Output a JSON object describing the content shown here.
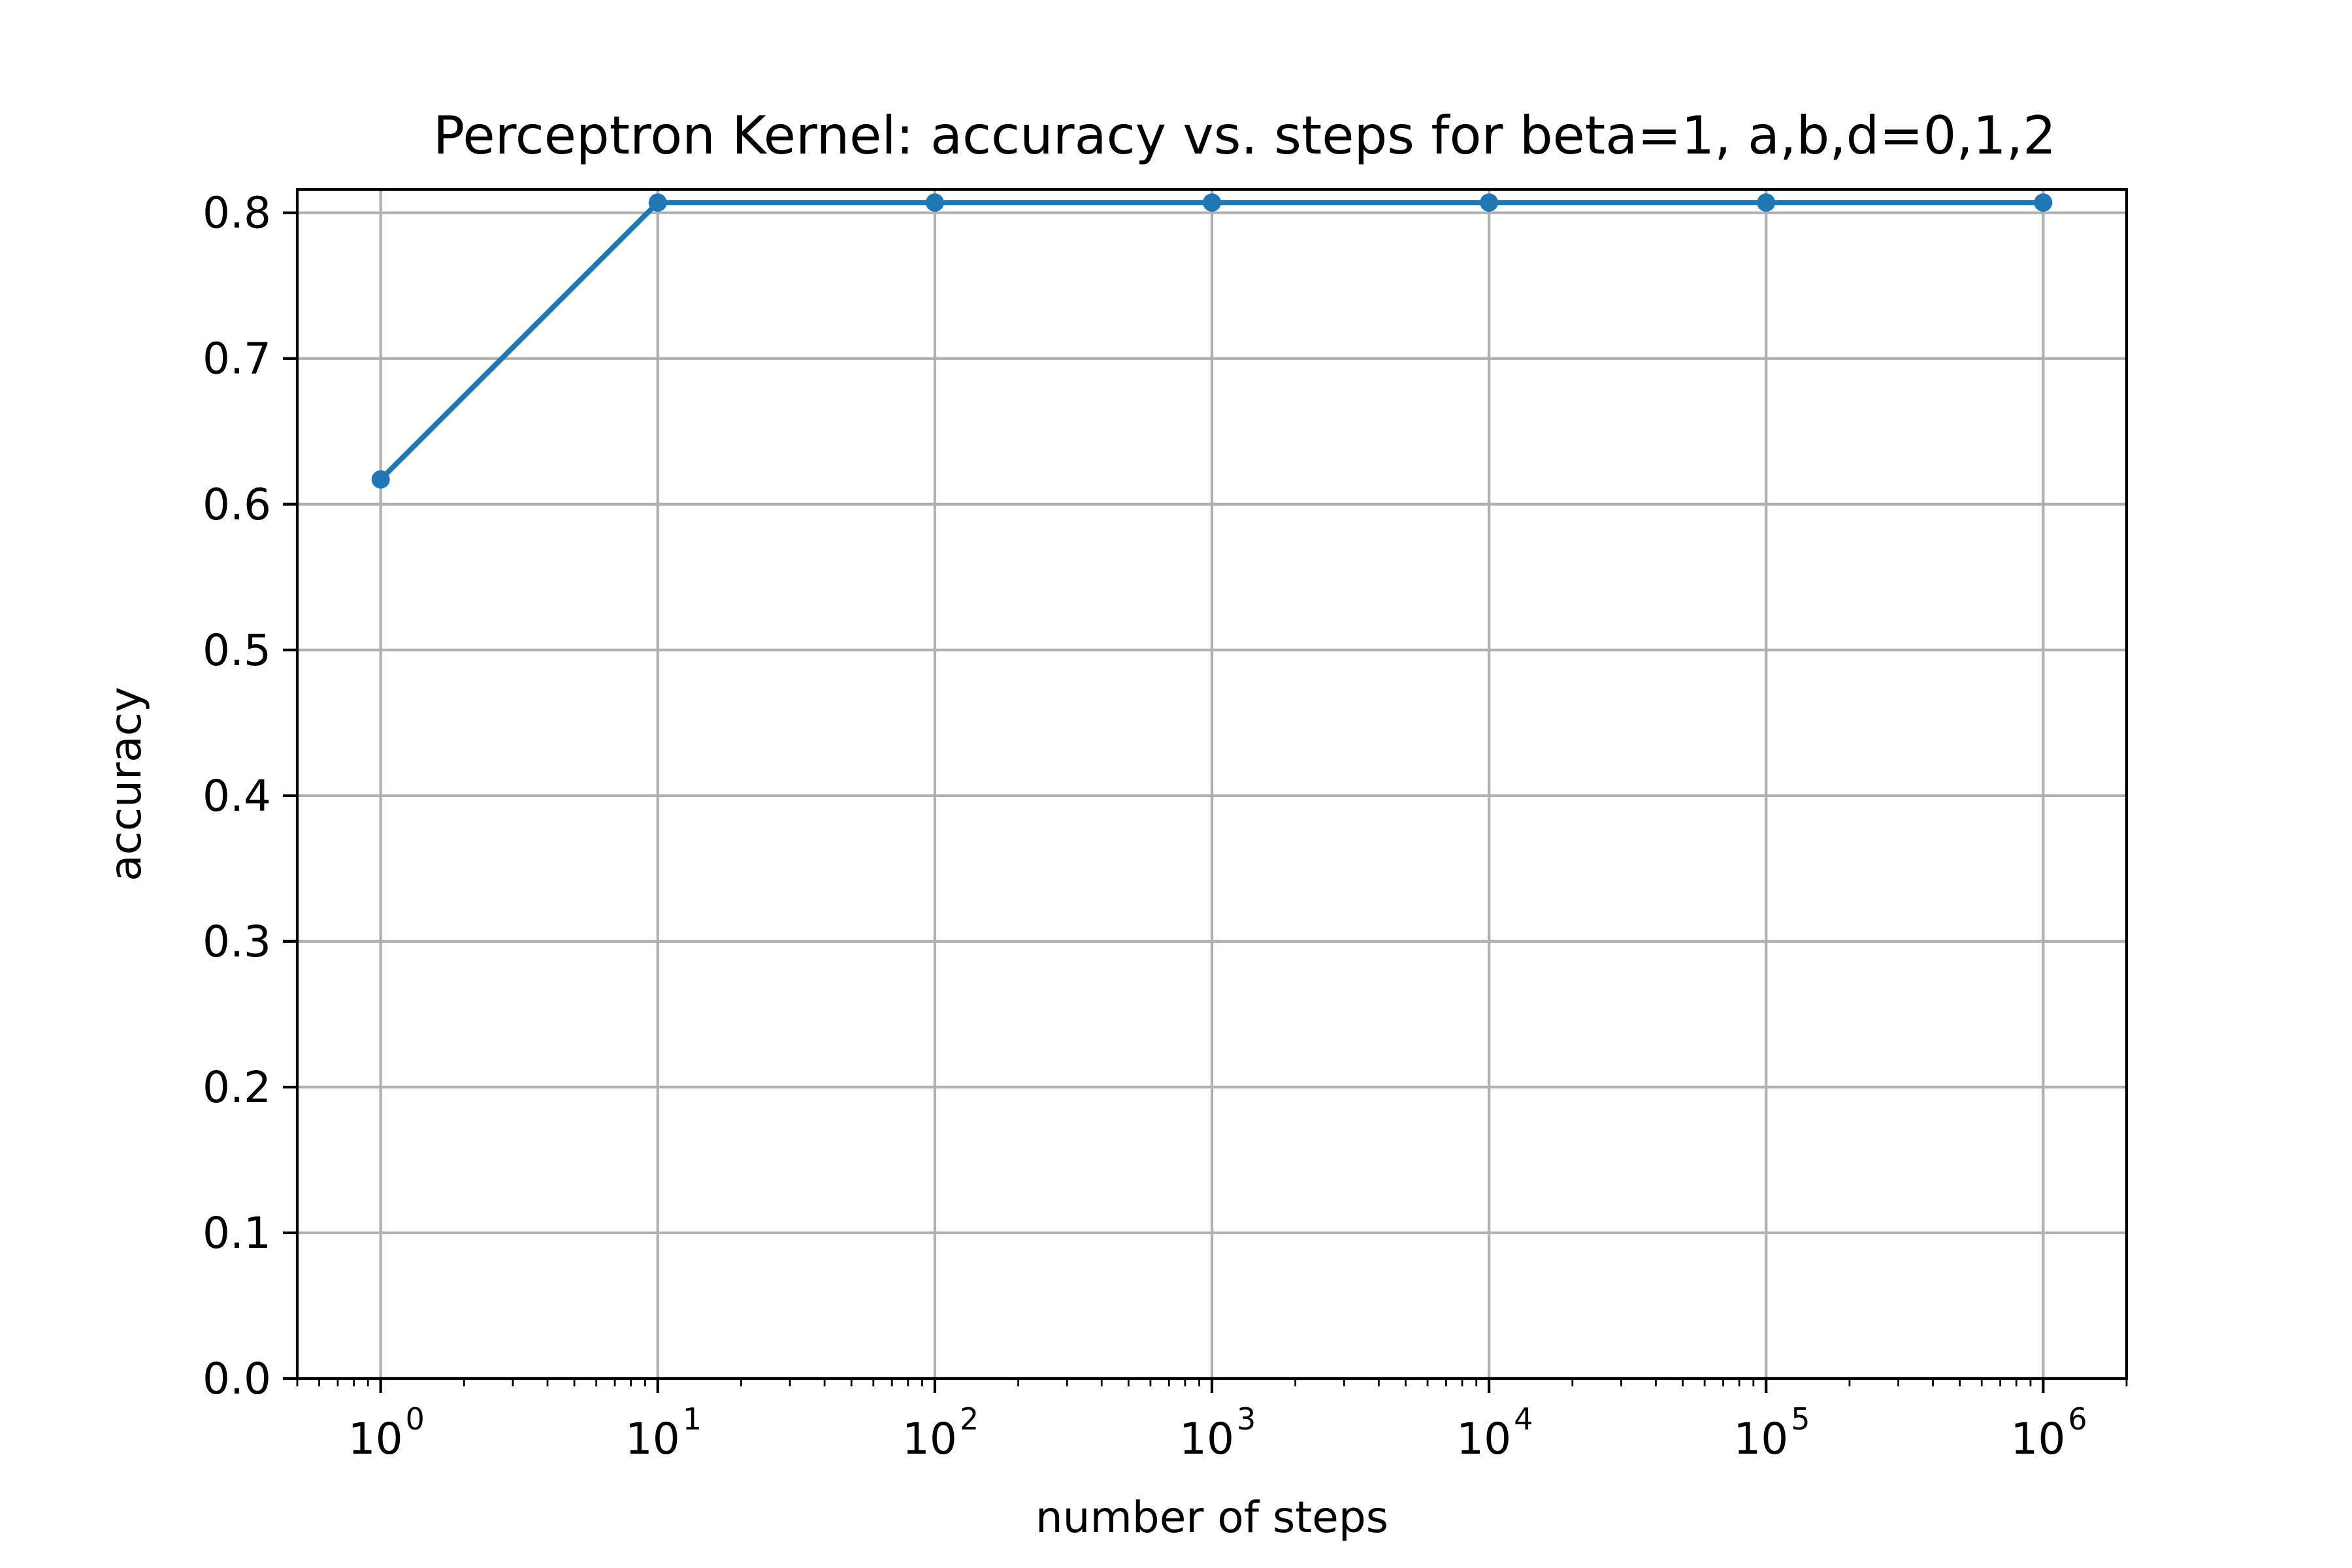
{
  "chart_data": {
    "type": "line",
    "title": "Perceptron Kernel: accuracy vs. steps for beta=1, a,b,d=0,1,2",
    "xlabel": "number of steps",
    "ylabel": "accuracy",
    "x_scale": "log",
    "xlim": [
      0.5,
      2000000
    ],
    "ylim": [
      0.0,
      0.816
    ],
    "grid": true,
    "x_ticks": [
      {
        "value": 1,
        "base": "10",
        "exp": "0"
      },
      {
        "value": 10,
        "base": "10",
        "exp": "1"
      },
      {
        "value": 100,
        "base": "10",
        "exp": "2"
      },
      {
        "value": 1000,
        "base": "10",
        "exp": "3"
      },
      {
        "value": 10000,
        "base": "10",
        "exp": "4"
      },
      {
        "value": 100000,
        "base": "10",
        "exp": "5"
      },
      {
        "value": 1000000,
        "base": "10",
        "exp": "6"
      }
    ],
    "y_ticks": [
      {
        "value": 0.0,
        "label": "0.0"
      },
      {
        "value": 0.1,
        "label": "0.1"
      },
      {
        "value": 0.2,
        "label": "0.2"
      },
      {
        "value": 0.3,
        "label": "0.3"
      },
      {
        "value": 0.4,
        "label": "0.4"
      },
      {
        "value": 0.5,
        "label": "0.5"
      },
      {
        "value": 0.6,
        "label": "0.6"
      },
      {
        "value": 0.7,
        "label": "0.7"
      },
      {
        "value": 0.8,
        "label": "0.8"
      }
    ],
    "series": [
      {
        "color": "#1f77b4",
        "marker": "circle",
        "x": [
          1,
          10,
          100,
          1000,
          10000,
          100000,
          1000000
        ],
        "y": [
          0.617,
          0.807,
          0.807,
          0.807,
          0.807,
          0.807,
          0.807
        ]
      }
    ]
  }
}
